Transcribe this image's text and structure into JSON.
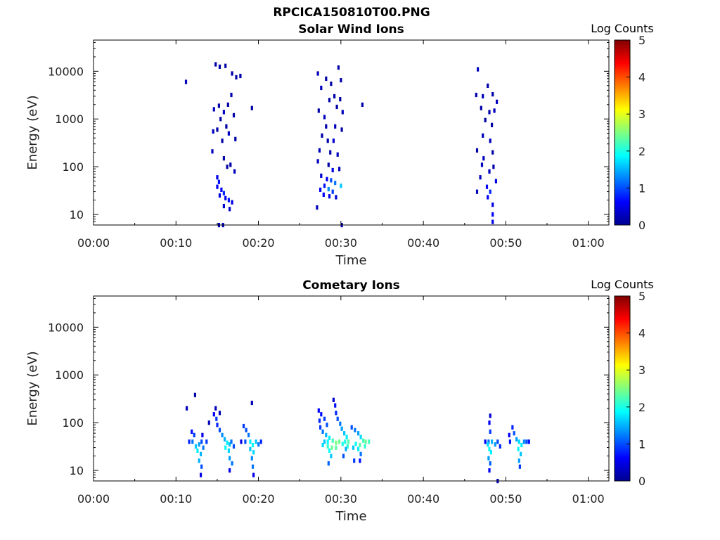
{
  "figure_title": "RPCICA150810T00.PNG",
  "colorbar": {
    "title": "Log Counts",
    "ticks": [
      "0",
      "1",
      "2",
      "3",
      "4",
      "5"
    ],
    "range": [
      0,
      5
    ],
    "colormap": "jet"
  },
  "chart_data": [
    {
      "type": "heatmap",
      "title": "Solar Wind Ions",
      "xlabel": "Time",
      "ylabel": "Energy (eV)",
      "x_ticks": [
        "00:00",
        "00:10",
        "00:20",
        "00:30",
        "00:40",
        "00:50",
        "01:00"
      ],
      "x_range_minutes": [
        0,
        62.5
      ],
      "y_scale": "log",
      "y_ticks": [
        "10",
        "100",
        "1000",
        "10000"
      ],
      "y_range_eV": [
        6,
        45000
      ],
      "z_label": "Log Counts",
      "z_range": [
        0,
        5
      ],
      "cells": [
        [
          11.2,
          6000,
          0.3
        ],
        [
          14.8,
          14000,
          0.2
        ],
        [
          15.3,
          12500,
          0.2
        ],
        [
          16.0,
          13000,
          0.2
        ],
        [
          16.8,
          9000,
          0.2
        ],
        [
          17.3,
          7500,
          0.2
        ],
        [
          17.8,
          8000,
          0.2
        ],
        [
          19.2,
          1700,
          0.2
        ],
        [
          14.6,
          1600,
          0.3
        ],
        [
          15.2,
          1900,
          0.2
        ],
        [
          15.8,
          1400,
          0.3
        ],
        [
          16.3,
          2000,
          0.2
        ],
        [
          16.7,
          3200,
          0.3
        ],
        [
          17.0,
          1200,
          0.2
        ],
        [
          15.4,
          1000,
          0.2
        ],
        [
          16.1,
          700,
          0.2
        ],
        [
          14.5,
          550,
          0.3
        ],
        [
          15.0,
          600,
          0.2
        ],
        [
          15.6,
          350,
          0.2
        ],
        [
          16.4,
          500,
          0.3
        ],
        [
          17.2,
          380,
          0.2
        ],
        [
          14.4,
          210,
          0.3
        ],
        [
          15.8,
          150,
          0.2
        ],
        [
          16.2,
          100,
          0.2
        ],
        [
          17.1,
          80,
          0.3
        ],
        [
          16.6,
          110,
          0.2
        ],
        [
          15.0,
          60,
          0.5
        ],
        [
          15.2,
          48,
          0.7
        ],
        [
          15.0,
          38,
          0.6
        ],
        [
          15.5,
          33,
          0.6
        ],
        [
          15.8,
          28,
          0.8
        ],
        [
          15.3,
          25,
          0.5
        ],
        [
          16.0,
          22,
          0.6
        ],
        [
          16.4,
          20,
          0.7
        ],
        [
          16.8,
          18,
          0.5
        ],
        [
          15.8,
          15,
          0.4
        ],
        [
          16.5,
          13,
          0.4
        ],
        [
          15.2,
          6,
          0.3
        ],
        [
          15.7,
          6,
          0.3
        ],
        [
          27.2,
          9000,
          0.3
        ],
        [
          28.2,
          7000,
          0.2
        ],
        [
          29.7,
          12000,
          0.2
        ],
        [
          30.0,
          6500,
          0.2
        ],
        [
          28.8,
          5500,
          0.2
        ],
        [
          27.6,
          4500,
          0.3
        ],
        [
          28.6,
          2500,
          0.2
        ],
        [
          29.2,
          3000,
          0.2
        ],
        [
          29.9,
          2600,
          0.2
        ],
        [
          32.6,
          2000,
          0.2
        ],
        [
          27.3,
          1500,
          0.2
        ],
        [
          28.0,
          1100,
          0.3
        ],
        [
          29.5,
          1800,
          0.2
        ],
        [
          30.2,
          1400,
          0.3
        ],
        [
          28.2,
          700,
          0.2
        ],
        [
          29.3,
          700,
          0.3
        ],
        [
          30.1,
          600,
          0.2
        ],
        [
          27.7,
          450,
          0.2
        ],
        [
          28.4,
          350,
          0.2
        ],
        [
          29.1,
          350,
          0.4
        ],
        [
          27.4,
          220,
          0.3
        ],
        [
          28.7,
          200,
          0.2
        ],
        [
          29.6,
          180,
          0.3
        ],
        [
          27.2,
          130,
          0.3
        ],
        [
          28.5,
          110,
          0.2
        ],
        [
          29.0,
          85,
          0.5
        ],
        [
          29.8,
          90,
          0.3
        ],
        [
          27.6,
          65,
          0.4
        ],
        [
          28.3,
          55,
          0.6
        ],
        [
          28.8,
          52,
          1.0
        ],
        [
          29.3,
          46,
          1.2
        ],
        [
          30.0,
          40,
          1.6
        ],
        [
          28.0,
          40,
          0.7
        ],
        [
          27.5,
          33,
          0.6
        ],
        [
          28.5,
          34,
          1.3
        ],
        [
          29.0,
          30,
          0.9
        ],
        [
          27.9,
          26,
          0.6
        ],
        [
          28.6,
          24,
          0.5
        ],
        [
          29.4,
          23,
          0.4
        ],
        [
          27.1,
          14,
          0.3
        ],
        [
          30.1,
          6,
          0.3
        ],
        [
          46.6,
          11000,
          0.3
        ],
        [
          47.8,
          5000,
          0.2
        ],
        [
          46.4,
          3200,
          0.2
        ],
        [
          47.2,
          3000,
          0.3
        ],
        [
          48.4,
          3300,
          0.2
        ],
        [
          48.9,
          2300,
          0.3
        ],
        [
          47.0,
          1700,
          0.2
        ],
        [
          48.0,
          1400,
          0.2
        ],
        [
          48.6,
          1500,
          0.3
        ],
        [
          47.5,
          950,
          0.2
        ],
        [
          48.3,
          750,
          0.2
        ],
        [
          47.2,
          450,
          0.3
        ],
        [
          48.1,
          350,
          0.3
        ],
        [
          46.5,
          220,
          0.2
        ],
        [
          47.3,
          150,
          0.3
        ],
        [
          48.4,
          200,
          0.2
        ],
        [
          47.1,
          110,
          0.3
        ],
        [
          48.5,
          100,
          0.2
        ],
        [
          48.0,
          80,
          0.3
        ],
        [
          46.9,
          60,
          0.3
        ],
        [
          48.8,
          50,
          0.5
        ],
        [
          47.7,
          38,
          0.6
        ],
        [
          48.1,
          30,
          0.8
        ],
        [
          47.8,
          23,
          0.6
        ],
        [
          46.5,
          30,
          0.3
        ],
        [
          48.4,
          16,
          0.5
        ],
        [
          48.4,
          10,
          0.6
        ],
        [
          48.4,
          7,
          0.5
        ]
      ]
    },
    {
      "type": "heatmap",
      "title": "Cometary Ions",
      "xlabel": "Time",
      "ylabel": "Energy (eV)",
      "x_ticks": [
        "00:00",
        "00:10",
        "00:20",
        "00:30",
        "00:40",
        "00:50",
        "01:00"
      ],
      "x_range_minutes": [
        0,
        62.5
      ],
      "y_scale": "log",
      "y_ticks": [
        "10",
        "100",
        "1000",
        "10000"
      ],
      "y_range_eV": [
        6,
        45000
      ],
      "z_label": "Log Counts",
      "z_range": [
        0,
        5
      ],
      "cells": [
        [
          11.3,
          200,
          0.3
        ],
        [
          12.3,
          380,
          0.2
        ],
        [
          11.9,
          65,
          0.7
        ],
        [
          12.2,
          55,
          0.9
        ],
        [
          11.6,
          40,
          0.8
        ],
        [
          12.0,
          40,
          1.2
        ],
        [
          12.4,
          32,
          1.6
        ],
        [
          12.8,
          35,
          1.4
        ],
        [
          13.1,
          40,
          1.0
        ],
        [
          12.6,
          26,
          1.8
        ],
        [
          13.0,
          22,
          1.5
        ],
        [
          12.8,
          16,
          1.5
        ],
        [
          13.1,
          12,
          1.0
        ],
        [
          13.0,
          8,
          0.5
        ],
        [
          13.3,
          30,
          1.2
        ],
        [
          13.7,
          40,
          0.9
        ],
        [
          13.2,
          55,
          0.5
        ],
        [
          14.0,
          100,
          0.3
        ],
        [
          14.6,
          150,
          0.6
        ],
        [
          14.9,
          120,
          0.9
        ],
        [
          15.0,
          90,
          0.8
        ],
        [
          15.3,
          70,
          1.0
        ],
        [
          15.6,
          55,
          1.3
        ],
        [
          15.9,
          45,
          1.5
        ],
        [
          16.2,
          38,
          1.8
        ],
        [
          16.5,
          35,
          1.6
        ],
        [
          16.0,
          30,
          1.9
        ],
        [
          16.4,
          26,
          1.7
        ],
        [
          16.7,
          40,
          1.2
        ],
        [
          17.0,
          32,
          1.0
        ],
        [
          16.5,
          18,
          1.4
        ],
        [
          16.8,
          14,
          1.2
        ],
        [
          16.5,
          10,
          0.5
        ],
        [
          14.8,
          200,
          0.3
        ],
        [
          15.3,
          160,
          0.3
        ],
        [
          18.2,
          85,
          0.9
        ],
        [
          18.5,
          70,
          1.0
        ],
        [
          18.8,
          55,
          1.2
        ],
        [
          18.4,
          40,
          1.0
        ],
        [
          19.0,
          40,
          1.8
        ],
        [
          19.3,
          34,
          1.9
        ],
        [
          19.7,
          40,
          1.6
        ],
        [
          20.0,
          35,
          1.2
        ],
        [
          19.0,
          28,
          1.6
        ],
        [
          19.4,
          24,
          1.7
        ],
        [
          19.2,
          18,
          1.3
        ],
        [
          19.3,
          12,
          1.2
        ],
        [
          19.4,
          8,
          0.5
        ],
        [
          19.2,
          260,
          0.3
        ],
        [
          20.3,
          40,
          0.8
        ],
        [
          17.9,
          40,
          0.5
        ],
        [
          27.3,
          180,
          0.6
        ],
        [
          27.6,
          150,
          0.7
        ],
        [
          27.4,
          110,
          0.8
        ],
        [
          28.0,
          120,
          0.9
        ],
        [
          28.3,
          90,
          1.0
        ],
        [
          27.5,
          80,
          0.9
        ],
        [
          27.8,
          65,
          1.2
        ],
        [
          28.2,
          55,
          1.5
        ],
        [
          28.6,
          48,
          1.8
        ],
        [
          29.0,
          42,
          2.2
        ],
        [
          29.4,
          38,
          2.5
        ],
        [
          29.8,
          40,
          2.4
        ],
        [
          30.2,
          36,
          2.0
        ],
        [
          28.4,
          40,
          1.9
        ],
        [
          28.0,
          40,
          1.6
        ],
        [
          27.8,
          34,
          1.7
        ],
        [
          28.4,
          32,
          2.1
        ],
        [
          28.9,
          30,
          2.4
        ],
        [
          29.4,
          30,
          2.3
        ],
        [
          28.6,
          26,
          1.9
        ],
        [
          28.8,
          20,
          1.6
        ],
        [
          28.5,
          14,
          1.1
        ],
        [
          29.1,
          300,
          0.4
        ],
        [
          29.3,
          230,
          0.7
        ],
        [
          29.4,
          160,
          0.8
        ],
        [
          29.6,
          120,
          1.0
        ],
        [
          29.9,
          95,
          1.2
        ],
        [
          30.1,
          75,
          1.4
        ],
        [
          30.4,
          60,
          1.6
        ],
        [
          30.7,
          50,
          1.8
        ],
        [
          30.9,
          40,
          2.3
        ],
        [
          30.5,
          40,
          2.0
        ],
        [
          30.8,
          32,
          2.1
        ],
        [
          30.6,
          28,
          1.5
        ],
        [
          30.3,
          20,
          1.0
        ],
        [
          31.3,
          80,
          1.0
        ],
        [
          31.7,
          70,
          1.2
        ],
        [
          32.1,
          60,
          1.4
        ],
        [
          32.4,
          50,
          1.7
        ],
        [
          32.7,
          42,
          2.2
        ],
        [
          33.0,
          40,
          2.4
        ],
        [
          33.4,
          40,
          2.2
        ],
        [
          32.3,
          34,
          2.3
        ],
        [
          31.8,
          36,
          1.9
        ],
        [
          31.5,
          30,
          1.6
        ],
        [
          32.1,
          28,
          1.8
        ],
        [
          32.4,
          22,
          1.2
        ],
        [
          32.9,
          32,
          2.1
        ],
        [
          31.6,
          16,
          0.9
        ],
        [
          32.3,
          16,
          0.7
        ],
        [
          47.5,
          40,
          0.6
        ],
        [
          47.9,
          40,
          1.2
        ],
        [
          48.3,
          40,
          1.5
        ],
        [
          47.8,
          35,
          1.7
        ],
        [
          48.0,
          28,
          1.9
        ],
        [
          48.2,
          24,
          1.8
        ],
        [
          47.9,
          18,
          1.4
        ],
        [
          48.1,
          14,
          1.1
        ],
        [
          48.0,
          10,
          0.6
        ],
        [
          48.1,
          65,
          0.9
        ],
        [
          48.0,
          100,
          0.6
        ],
        [
          48.1,
          140,
          0.4
        ],
        [
          48.7,
          35,
          1.4
        ],
        [
          49.0,
          40,
          1.0
        ],
        [
          49.3,
          32,
          0.8
        ],
        [
          49.0,
          6,
          0.3
        ],
        [
          50.8,
          80,
          0.8
        ],
        [
          51.0,
          60,
          1.0
        ],
        [
          51.3,
          45,
          1.4
        ],
        [
          51.6,
          40,
          1.7
        ],
        [
          51.9,
          34,
          1.8
        ],
        [
          51.5,
          28,
          1.9
        ],
        [
          51.8,
          22,
          1.6
        ],
        [
          51.6,
          16,
          1.4
        ],
        [
          51.7,
          12,
          0.9
        ],
        [
          52.2,
          40,
          1.3
        ],
        [
          52.5,
          40,
          1.0
        ],
        [
          52.8,
          40,
          0.7
        ],
        [
          50.5,
          40,
          0.7
        ],
        [
          50.4,
          55,
          0.6
        ]
      ]
    }
  ]
}
